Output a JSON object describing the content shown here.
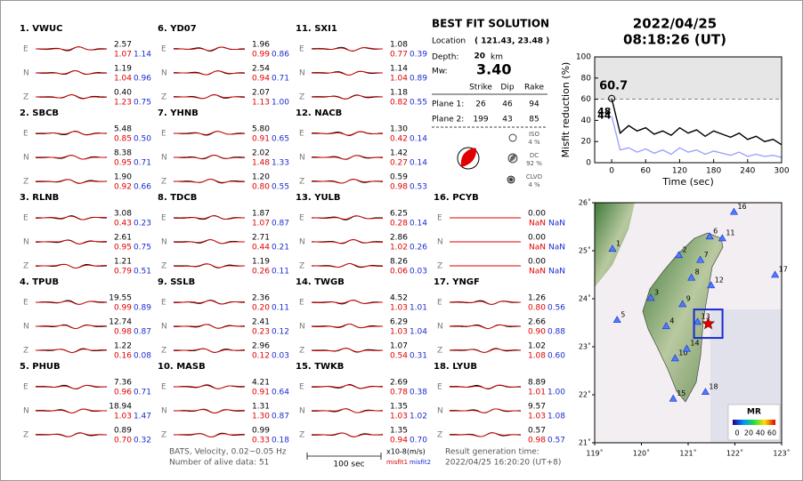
{
  "header": {
    "date": "2022/04/25",
    "time": "08:18:26  (UT)"
  },
  "stations": [
    {
      "label": "1.  VWUC",
      "components": [
        {
          "name": "E",
          "amplitude": "2.57",
          "misfit1": "1.07",
          "misfit2": "1.14"
        },
        {
          "name": "N",
          "amplitude": "1.19",
          "misfit1": "1.04",
          "misfit2": "0.96"
        },
        {
          "name": "Z",
          "amplitude": "0.40",
          "misfit1": "1.23",
          "misfit2": "0.75"
        }
      ]
    },
    {
      "label": "2.  SBCB",
      "components": [
        {
          "name": "E",
          "amplitude": "5.48",
          "misfit1": "0.85",
          "misfit2": "0.50"
        },
        {
          "name": "N",
          "amplitude": "8.38",
          "misfit1": "0.95",
          "misfit2": "0.71"
        },
        {
          "name": "Z",
          "amplitude": "1.90",
          "misfit1": "0.92",
          "misfit2": "0.66"
        }
      ]
    },
    {
      "label": "3.  RLNB",
      "components": [
        {
          "name": "E",
          "amplitude": "3.08",
          "misfit1": "0.43",
          "misfit2": "0.23"
        },
        {
          "name": "N",
          "amplitude": "2.61",
          "misfit1": "0.95",
          "misfit2": "0.75"
        },
        {
          "name": "Z",
          "amplitude": "1.21",
          "misfit1": "0.79",
          "misfit2": "0.51"
        }
      ]
    },
    {
      "label": "4.  TPUB",
      "components": [
        {
          "name": "E",
          "amplitude": "19.55",
          "misfit1": "0.99",
          "misfit2": "0.89"
        },
        {
          "name": "N",
          "amplitude": "12.74",
          "misfit1": "0.98",
          "misfit2": "0.87"
        },
        {
          "name": "Z",
          "amplitude": "1.22",
          "misfit1": "0.16",
          "misfit2": "0.08"
        }
      ]
    },
    {
      "label": "5.  PHUB",
      "components": [
        {
          "name": "E",
          "amplitude": "7.36",
          "misfit1": "0.96",
          "misfit2": "0.71"
        },
        {
          "name": "N",
          "amplitude": "18.94",
          "misfit1": "1.03",
          "misfit2": "1.47"
        },
        {
          "name": "Z",
          "amplitude": "0.89",
          "misfit1": "0.70",
          "misfit2": "0.32"
        }
      ]
    },
    {
      "label": "6.  YD07",
      "components": [
        {
          "name": "E",
          "amplitude": "1.96",
          "misfit1": "0.99",
          "misfit2": "0.86"
        },
        {
          "name": "N",
          "amplitude": "2.54",
          "misfit1": "0.94",
          "misfit2": "0.71"
        },
        {
          "name": "Z",
          "amplitude": "2.07",
          "misfit1": "1.13",
          "misfit2": "1.00"
        }
      ]
    },
    {
      "label": "7.  YHNB",
      "components": [
        {
          "name": "E",
          "amplitude": "5.80",
          "misfit1": "0.91",
          "misfit2": "0.65"
        },
        {
          "name": "N",
          "amplitude": "2.02",
          "misfit1": "1.48",
          "misfit2": "1.33"
        },
        {
          "name": "Z",
          "amplitude": "1.20",
          "misfit1": "0.80",
          "misfit2": "0.55"
        }
      ]
    },
    {
      "label": "8.  TDCB",
      "components": [
        {
          "name": "E",
          "amplitude": "1.87",
          "misfit1": "1.07",
          "misfit2": "0.87"
        },
        {
          "name": "N",
          "amplitude": "2.71",
          "misfit1": "0.44",
          "misfit2": "0.21"
        },
        {
          "name": "Z",
          "amplitude": "1.19",
          "misfit1": "0.26",
          "misfit2": "0.11"
        }
      ]
    },
    {
      "label": "9.  SSLB",
      "components": [
        {
          "name": "E",
          "amplitude": "2.36",
          "misfit1": "0.20",
          "misfit2": "0.11"
        },
        {
          "name": "N",
          "amplitude": "2.41",
          "misfit1": "0.23",
          "misfit2": "0.12"
        },
        {
          "name": "Z",
          "amplitude": "2.96",
          "misfit1": "0.12",
          "misfit2": "0.03"
        }
      ]
    },
    {
      "label": "10. MASB",
      "components": [
        {
          "name": "E",
          "amplitude": "4.21",
          "misfit1": "0.91",
          "misfit2": "0.64"
        },
        {
          "name": "N",
          "amplitude": "1.31",
          "misfit1": "1.30",
          "misfit2": "0.87"
        },
        {
          "name": "Z",
          "amplitude": "0.99",
          "misfit1": "0.33",
          "misfit2": "0.18"
        }
      ]
    },
    {
      "label": "11. SXI1",
      "components": [
        {
          "name": "E",
          "amplitude": "1.08",
          "misfit1": "0.77",
          "misfit2": "0.39"
        },
        {
          "name": "N",
          "amplitude": "1.14",
          "misfit1": "1.04",
          "misfit2": "0.89"
        },
        {
          "name": "Z",
          "amplitude": "1.18",
          "misfit1": "0.82",
          "misfit2": "0.55"
        }
      ]
    },
    {
      "label": "12. NACB",
      "components": [
        {
          "name": "E",
          "amplitude": "1.30",
          "misfit1": "0.42",
          "misfit2": "0.14"
        },
        {
          "name": "N",
          "amplitude": "1.42",
          "misfit1": "0.27",
          "misfit2": "0.14"
        },
        {
          "name": "Z",
          "amplitude": "0.59",
          "misfit1": "0.98",
          "misfit2": "0.53"
        }
      ]
    },
    {
      "label": "13. YULB",
      "components": [
        {
          "name": "E",
          "amplitude": "6.25",
          "misfit1": "0.28",
          "misfit2": "0.14"
        },
        {
          "name": "N",
          "amplitude": "2.86",
          "misfit1": "1.02",
          "misfit2": "0.26"
        },
        {
          "name": "Z",
          "amplitude": "8.26",
          "misfit1": "0.06",
          "misfit2": "0.03"
        }
      ]
    },
    {
      "label": "14. TWGB",
      "components": [
        {
          "name": "E",
          "amplitude": "4.52",
          "misfit1": "1.03",
          "misfit2": "1.01"
        },
        {
          "name": "N",
          "amplitude": "6.29",
          "misfit1": "1.03",
          "misfit2": "1.04"
        },
        {
          "name": "Z",
          "amplitude": "1.07",
          "misfit1": "0.54",
          "misfit2": "0.31"
        }
      ]
    },
    {
      "label": "15. TWKB",
      "components": [
        {
          "name": "E",
          "amplitude": "2.69",
          "misfit1": "0.78",
          "misfit2": "0.38"
        },
        {
          "name": "N",
          "amplitude": "1.35",
          "misfit1": "1.03",
          "misfit2": "1.02"
        },
        {
          "name": "Z",
          "amplitude": "1.35",
          "misfit1": "0.94",
          "misfit2": "0.70"
        }
      ]
    },
    {
      "label": "16. PCYB",
      "components": [
        {
          "name": "E",
          "amplitude": "0.00",
          "misfit1": "NaN",
          "misfit2": "NaN"
        },
        {
          "name": "N",
          "amplitude": "0.00",
          "misfit1": "NaN",
          "misfit2": "NaN"
        },
        {
          "name": "Z",
          "amplitude": "0.00",
          "misfit1": "NaN",
          "misfit2": "NaN"
        }
      ]
    },
    {
      "label": "17. YNGF",
      "components": [
        {
          "name": "E",
          "amplitude": "1.26",
          "misfit1": "0.80",
          "misfit2": "0.56"
        },
        {
          "name": "N",
          "amplitude": "2.66",
          "misfit1": "0.90",
          "misfit2": "0.88"
        },
        {
          "name": "Z",
          "amplitude": "1.02",
          "misfit1": "1.08",
          "misfit2": "0.60"
        }
      ]
    },
    {
      "label": "18. LYUB",
      "components": [
        {
          "name": "E",
          "amplitude": "8.89",
          "misfit1": "1.01",
          "misfit2": "1.00"
        },
        {
          "name": "N",
          "amplitude": "9.57",
          "misfit1": "1.03",
          "misfit2": "1.08"
        },
        {
          "name": "Z",
          "amplitude": "0.57",
          "misfit1": "0.98",
          "misfit2": "0.57"
        }
      ]
    }
  ],
  "solution": {
    "title": "BEST FIT SOLUTION",
    "location_label": "Location",
    "location": "( 121.43,  23.48 )",
    "depth_label": "Depth:",
    "depth": "20",
    "depth_unit": "km",
    "mw_label": "Mw:",
    "mw": "3.40",
    "columns": [
      "Strike",
      "Dip",
      "Rake"
    ],
    "planes": [
      {
        "label": "Plane 1:",
        "values": [
          "26",
          "46",
          "94"
        ]
      },
      {
        "label": "Plane 2:",
        "values": [
          "199",
          "43",
          "85"
        ]
      }
    ],
    "components": [
      {
        "name": "ISO",
        "value": "4 %"
      },
      {
        "name": "DC",
        "value": "92 %"
      },
      {
        "name": "CLVD",
        "value": "4 %"
      }
    ]
  },
  "chart_data": {
    "type": "line",
    "xlabel": "Time (sec)",
    "ylabel": "Misfit reduction (%)",
    "x": [
      0,
      15,
      30,
      45,
      60,
      75,
      90,
      105,
      120,
      135,
      150,
      165,
      180,
      195,
      210,
      225,
      240,
      255,
      270,
      285,
      300
    ],
    "series": [
      {
        "color": "#000000",
        "values": [
          60.7,
          28,
          35,
          30,
          33,
          27,
          30,
          26,
          33,
          28,
          31,
          25,
          30,
          27,
          24,
          28,
          22,
          25,
          20,
          22,
          17
        ]
      },
      {
        "color": "#9fa3ff",
        "values": [
          44,
          12,
          14,
          10,
          13,
          9,
          12,
          8,
          14,
          10,
          12,
          8,
          11,
          9,
          7,
          10,
          6,
          8,
          6,
          7,
          5
        ]
      }
    ],
    "xlim": [
      -30,
      300
    ],
    "ylim": [
      0,
      100
    ],
    "xticks": [
      0,
      60,
      120,
      180,
      240,
      300
    ],
    "yticks": [
      0,
      20,
      40,
      60,
      80,
      100
    ],
    "reference_line": 60,
    "annotations": [
      {
        "label": "60.7",
        "value": 60.7,
        "color": "#e00000"
      },
      {
        "label": "48",
        "value": 48,
        "color": "#999999"
      },
      {
        "label": "44",
        "value": 44,
        "color": "#9fa3ff"
      }
    ]
  },
  "map": {
    "xlim": [
      119,
      123
    ],
    "ylim": [
      21,
      26
    ],
    "xticks": [
      {
        "value": 119,
        "label": "119˚"
      },
      {
        "value": 120,
        "label": "120˚"
      },
      {
        "value": 121,
        "label": "121˚"
      },
      {
        "value": 122,
        "label": "122˚"
      },
      {
        "value": 123,
        "label": "123˚"
      }
    ],
    "yticks": [
      {
        "value": 21,
        "label": "21˚"
      },
      {
        "value": 22,
        "label": "22˚"
      },
      {
        "value": 23,
        "label": "23˚"
      },
      {
        "value": 24,
        "label": "24˚"
      },
      {
        "value": 25,
        "label": "25˚"
      },
      {
        "value": 26,
        "label": "26˚"
      }
    ],
    "stations": [
      {
        "label": "1",
        "lon": 119.38,
        "lat": 25.04
      },
      {
        "label": "2",
        "lon": 120.8,
        "lat": 24.91
      },
      {
        "label": "3",
        "lon": 120.2,
        "lat": 24.02
      },
      {
        "label": "4",
        "lon": 120.53,
        "lat": 23.43
      },
      {
        "label": "5",
        "lon": 119.48,
        "lat": 23.56
      },
      {
        "label": "6",
        "lon": 121.46,
        "lat": 25.3
      },
      {
        "label": "7",
        "lon": 121.26,
        "lat": 24.81
      },
      {
        "label": "8",
        "lon": 121.07,
        "lat": 24.44
      },
      {
        "label": "9",
        "lon": 120.88,
        "lat": 23.89
      },
      {
        "label": "10",
        "lon": 120.72,
        "lat": 22.76
      },
      {
        "label": "11",
        "lon": 121.73,
        "lat": 25.26
      },
      {
        "label": "12",
        "lon": 121.49,
        "lat": 24.28
      },
      {
        "label": "13",
        "lon": 121.2,
        "lat": 23.52
      },
      {
        "label": "14",
        "lon": 120.97,
        "lat": 22.96
      },
      {
        "label": "15",
        "lon": 120.68,
        "lat": 21.92
      },
      {
        "label": "16",
        "lon": 121.98,
        "lat": 25.81
      },
      {
        "label": "17",
        "lon": 122.86,
        "lat": 24.5
      },
      {
        "label": "18",
        "lon": 121.37,
        "lat": 22.06
      }
    ],
    "epicenter": {
      "lon": 121.43,
      "lat": 23.48
    },
    "colorbar": {
      "title": "MR",
      "ticks": [
        "0",
        "20",
        "40",
        "60"
      ]
    }
  },
  "footer": {
    "filter": "BATS, Velocity, 0.02~0.05 Hz",
    "alive": "Number of alive data: 51",
    "scale": "100 sec",
    "units": "x10-8(m/s)",
    "misfit1": "misfit1",
    "misfit2": "misfit2",
    "gen_label": "Result generation time:",
    "gen_time": "2022/04/25 16:20:20 (UT+8)"
  }
}
